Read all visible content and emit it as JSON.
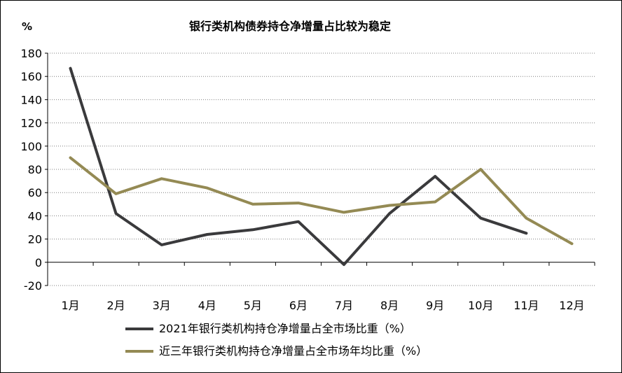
{
  "chart_data": {
    "type": "line",
    "title": "银行类机构债券持仓净增量占比较为稳定",
    "unit_label": "%",
    "categories": [
      "1月",
      "2月",
      "3月",
      "4月",
      "5月",
      "6月",
      "7月",
      "8月",
      "9月",
      "10月",
      "11月",
      "12月"
    ],
    "y_ticks": [
      "-20",
      "0",
      "20",
      "40",
      "60",
      "80",
      "100",
      "120",
      "140",
      "160",
      "180"
    ],
    "ylim": [
      -20,
      180
    ],
    "grid": "horizontal dotted",
    "legend_position": "bottom",
    "series": [
      {
        "name": "2021年银行类机构持仓净增量占全市场比重（%）",
        "color": "#3a3a3c",
        "values": [
          167,
          42,
          15,
          24,
          28,
          35,
          -2,
          42,
          74,
          38,
          25,
          null
        ]
      },
      {
        "name": "近三年银行类机构持仓净增量占全市场年均比重（%）",
        "color": "#948a54",
        "values": [
          90,
          59,
          72,
          64,
          50,
          51,
          43,
          49,
          52,
          80,
          38,
          16
        ]
      }
    ]
  }
}
